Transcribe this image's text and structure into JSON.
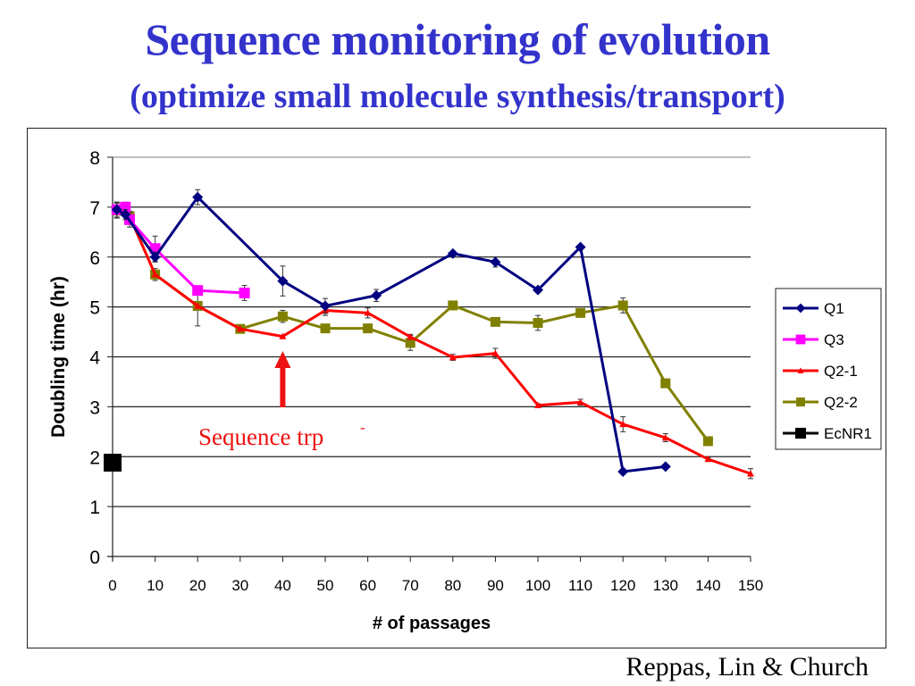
{
  "slide": {
    "title": "Sequence monitoring of evolution",
    "subtitle": "(optimize small molecule synthesis/transport)",
    "credit": "Reppas, Lin & Church",
    "annotation": {
      "text": "Sequence trp",
      "superscript": "-",
      "arrow_at_x": 40,
      "color": "#ee1111"
    }
  },
  "chart_data": {
    "type": "line",
    "title": "",
    "xlabel": "# of passages",
    "ylabel": "Doubling time (hr)",
    "xlim": [
      0,
      150
    ],
    "ylim": [
      0,
      8
    ],
    "xticks": [
      0,
      10,
      20,
      30,
      40,
      50,
      60,
      70,
      80,
      90,
      100,
      110,
      120,
      130,
      140,
      150
    ],
    "yticks": [
      0,
      1,
      2,
      3,
      4,
      5,
      6,
      7,
      8
    ],
    "grid": "horizontal",
    "legend": "right",
    "series": [
      {
        "name": "Q1",
        "color": "#000080",
        "marker": "diamond",
        "points": [
          [
            1,
            6.95
          ],
          [
            3,
            6.85
          ],
          [
            10,
            6.0
          ],
          [
            20,
            7.2
          ],
          [
            40,
            5.52
          ],
          [
            50,
            5.02
          ],
          [
            62,
            5.23
          ],
          [
            80,
            6.07
          ],
          [
            90,
            5.9
          ],
          [
            100,
            5.34
          ],
          [
            110,
            6.2
          ],
          [
            120,
            1.7
          ],
          [
            130,
            1.8
          ]
        ],
        "errors": [
          0.15,
          0.1,
          0.1,
          0.15,
          0.3,
          0.15,
          0.12,
          0.05,
          0.1,
          0.05,
          0,
          0,
          0
        ]
      },
      {
        "name": "Q3",
        "color": "#ff00ff",
        "marker": "square",
        "points": [
          [
            1,
            6.95
          ],
          [
            3,
            7.0
          ],
          [
            4,
            6.75
          ],
          [
            10,
            6.17
          ],
          [
            20,
            5.33
          ],
          [
            31,
            5.28
          ]
        ],
        "errors": [
          0.15,
          0.1,
          0.15,
          0.25,
          0,
          0.15
        ]
      },
      {
        "name": "Q2-1",
        "color": "#ff0000",
        "marker": "triangle",
        "points": [
          [
            1,
            6.93
          ],
          [
            3,
            6.97
          ],
          [
            4,
            6.82
          ],
          [
            10,
            5.65
          ],
          [
            20,
            5.02
          ],
          [
            30,
            4.56
          ],
          [
            40,
            4.41
          ],
          [
            50,
            4.93
          ],
          [
            60,
            4.88
          ],
          [
            70,
            4.4
          ],
          [
            80,
            3.99
          ],
          [
            90,
            4.07
          ],
          [
            100,
            3.03
          ],
          [
            110,
            3.09
          ],
          [
            120,
            2.65
          ],
          [
            130,
            2.38
          ],
          [
            140,
            1.95
          ],
          [
            150,
            1.66
          ]
        ],
        "errors": [
          0,
          0,
          0,
          0,
          0,
          0,
          0,
          0.1,
          0.1,
          0.05,
          0.06,
          0.1,
          0.03,
          0.06,
          0.15,
          0.08,
          0.03,
          0.1
        ]
      },
      {
        "name": "Q2-2",
        "color": "#808000",
        "marker": "square",
        "points": [
          [
            1,
            6.93
          ],
          [
            3,
            6.97
          ],
          [
            4,
            6.82
          ],
          [
            10,
            5.65
          ],
          [
            20,
            5.02
          ],
          [
            30,
            4.56
          ],
          [
            40,
            4.81
          ],
          [
            50,
            4.57
          ],
          [
            60,
            4.57
          ],
          [
            70,
            4.28
          ],
          [
            80,
            5.03
          ],
          [
            90,
            4.7
          ],
          [
            100,
            4.68
          ],
          [
            110,
            4.88
          ],
          [
            120,
            5.03
          ],
          [
            130,
            3.47
          ],
          [
            140,
            2.31
          ]
        ],
        "errors": [
          0.15,
          0,
          0.1,
          0.12,
          0.4,
          0,
          0.12,
          0,
          0,
          0.15,
          0,
          0.07,
          0.15,
          0,
          0.15,
          0,
          0
        ]
      },
      {
        "name": "EcNR1",
        "color": "#000000",
        "marker": "bigsquare",
        "points": [
          [
            0,
            1.88
          ]
        ],
        "errors": [
          0
        ]
      }
    ]
  }
}
